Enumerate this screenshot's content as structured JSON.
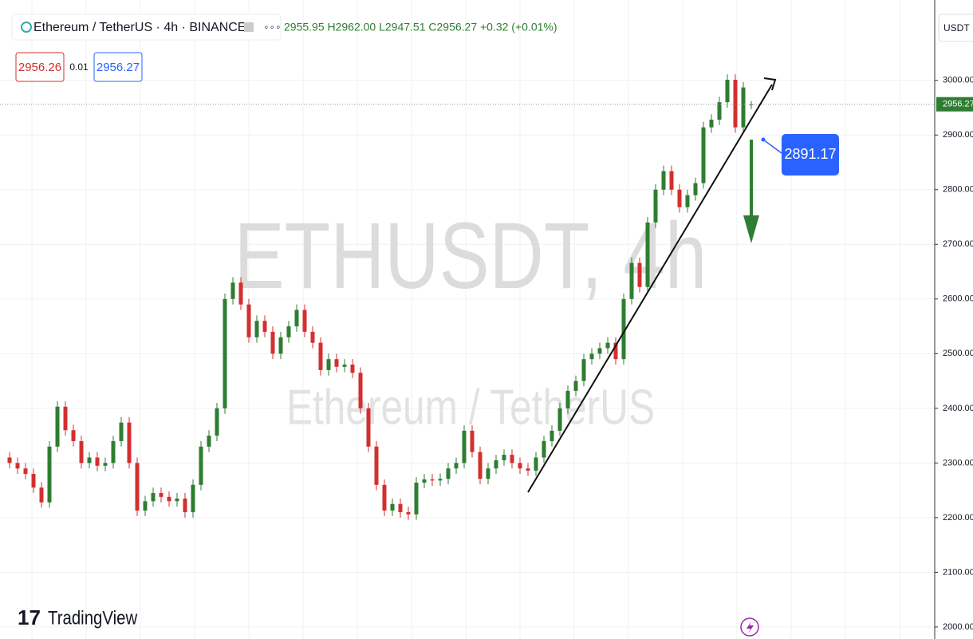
{
  "chart_data": {
    "type": "candlestick",
    "symbol": "Ethereum / TetherUS · 4h · BINANCE",
    "ohlc_text": "2955.95 H2962.00 L2947.51 C2956.27 +0.32 (+0.01%)",
    "bid": "2956.26",
    "spread": "0.01",
    "ask": "2956.27",
    "watermark": "ETHUSDT, 4h",
    "watermark_sub": "Ethereum / TetherUS",
    "currency": "USDT",
    "annotation": "2891.17",
    "brand": "TradingView",
    "up_color": "#2e7d32",
    "down_color": "#d32f2f",
    "grid": true,
    "ylim": [
      1978,
      3147
    ],
    "yticks": [
      {
        "value": 2000,
        "label": "2000.00"
      },
      {
        "value": 2100,
        "label": "2100.00"
      },
      {
        "value": 2200,
        "label": "2200.00"
      },
      {
        "value": 2300,
        "label": "2300.00"
      },
      {
        "value": 2400,
        "label": "2400.00"
      },
      {
        "value": 2500,
        "label": "2500.00"
      },
      {
        "value": 2600,
        "label": "2600.00"
      },
      {
        "value": 2700,
        "label": "2700.00"
      },
      {
        "value": 2800,
        "label": "2800.00"
      },
      {
        "value": 2900,
        "label": "2900.00"
      },
      {
        "value": 3000,
        "label": "3000.00"
      }
    ],
    "open": [
      2310,
      2300,
      2290,
      2280,
      2255,
      2228,
      2330,
      2403,
      2360,
      2340,
      2300,
      2310,
      2295,
      2300,
      2340,
      2374,
      2300,
      2213,
      2230,
      2245,
      2238,
      2230,
      2235,
      2210,
      2260,
      2330,
      2350,
      2400,
      2600,
      2630,
      2590,
      2530,
      2560,
      2540,
      2500,
      2530,
      2550,
      2580,
      2540,
      2520,
      2470,
      2490,
      2476,
      2480,
      2465,
      2400,
      2330,
      2260,
      2213,
      2225,
      2210,
      2206,
      2264,
      2270,
      2268,
      2271,
      2290,
      2300,
      2359,
      2320,
      2271,
      2290,
      2305,
      2315,
      2300,
      2290,
      2286,
      2310,
      2340,
      2359,
      2400,
      2432,
      2450,
      2490,
      2500,
      2510,
      2520,
      2490,
      2600,
      2666,
      2622,
      2740,
      2800,
      2834,
      2800,
      2768,
      2790,
      2812,
      2914,
      2928,
      2960,
      3001,
      2914,
      2955.95
    ],
    "high": [
      2320,
      2310,
      2300,
      2290,
      2265,
      2340,
      2413,
      2413,
      2370,
      2350,
      2320,
      2320,
      2310,
      2350,
      2384,
      2384,
      2310,
      2240,
      2255,
      2255,
      2248,
      2245,
      2245,
      2270,
      2340,
      2360,
      2410,
      2610,
      2640,
      2640,
      2600,
      2570,
      2570,
      2550,
      2540,
      2560,
      2590,
      2590,
      2550,
      2530,
      2500,
      2500,
      2490,
      2490,
      2475,
      2410,
      2340,
      2270,
      2235,
      2235,
      2220,
      2274,
      2280,
      2280,
      2281,
      2300,
      2310,
      2369,
      2369,
      2330,
      2300,
      2315,
      2325,
      2325,
      2310,
      2300,
      2320,
      2350,
      2369,
      2410,
      2442,
      2460,
      2500,
      2510,
      2520,
      2530,
      2530,
      2610,
      2676,
      2676,
      2750,
      2810,
      2844,
      2844,
      2810,
      2800,
      2822,
      2924,
      2938,
      2970,
      3011,
      3011,
      2997,
      2962
    ],
    "low": [
      2290,
      2280,
      2270,
      2245,
      2218,
      2218,
      2320,
      2350,
      2330,
      2290,
      2290,
      2285,
      2285,
      2290,
      2330,
      2290,
      2203,
      2203,
      2220,
      2228,
      2220,
      2220,
      2200,
      2200,
      2250,
      2320,
      2340,
      2390,
      2590,
      2580,
      2520,
      2520,
      2530,
      2490,
      2490,
      2520,
      2540,
      2530,
      2510,
      2460,
      2460,
      2466,
      2466,
      2455,
      2390,
      2320,
      2250,
      2203,
      2203,
      2200,
      2196,
      2196,
      2254,
      2258,
      2258,
      2261,
      2280,
      2290,
      2310,
      2261,
      2261,
      2280,
      2295,
      2290,
      2280,
      2276,
      2276,
      2300,
      2330,
      2349,
      2390,
      2422,
      2440,
      2480,
      2490,
      2500,
      2480,
      2480,
      2590,
      2612,
      2612,
      2730,
      2790,
      2790,
      2758,
      2758,
      2780,
      2802,
      2904,
      2918,
      2950,
      2904,
      2904,
      2947.51
    ],
    "close": [
      2300,
      2290,
      2280,
      2255,
      2228,
      2330,
      2403,
      2360,
      2340,
      2300,
      2310,
      2295,
      2300,
      2340,
      2374,
      2300,
      2213,
      2230,
      2245,
      2238,
      2230,
      2235,
      2210,
      2260,
      2330,
      2350,
      2400,
      2600,
      2630,
      2590,
      2530,
      2560,
      2540,
      2500,
      2530,
      2550,
      2580,
      2540,
      2520,
      2470,
      2490,
      2476,
      2480,
      2465,
      2400,
      2330,
      2260,
      2213,
      2225,
      2210,
      2206,
      2264,
      2270,
      2268,
      2271,
      2290,
      2300,
      2359,
      2320,
      2271,
      2290,
      2305,
      2315,
      2300,
      2290,
      2286,
      2310,
      2340,
      2359,
      2400,
      2432,
      2450,
      2490,
      2500,
      2510,
      2520,
      2490,
      2600,
      2666,
      2622,
      2740,
      2800,
      2834,
      2800,
      2768,
      2790,
      2812,
      2914,
      2928,
      2960,
      3001,
      2914,
      2987,
      2956.27
    ]
  }
}
